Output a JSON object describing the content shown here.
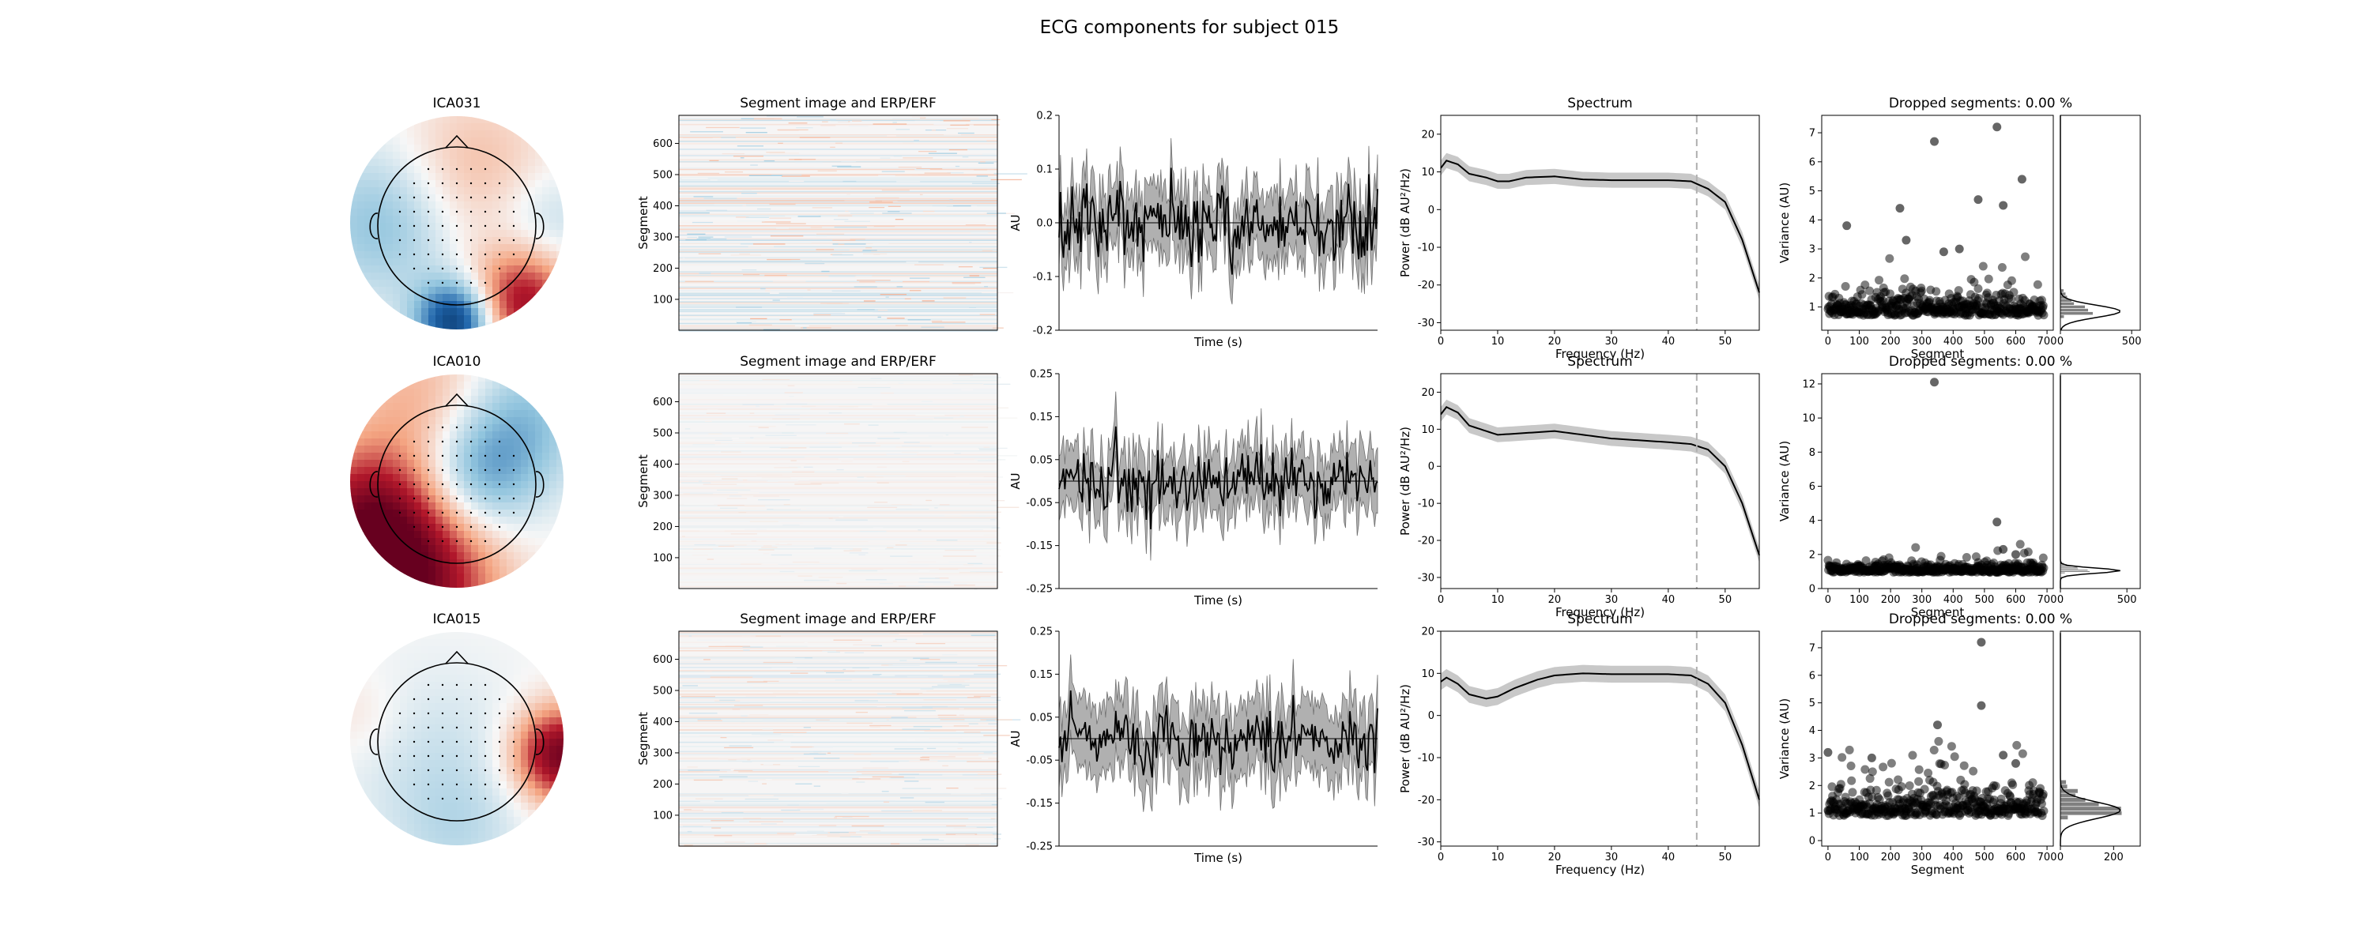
{
  "figure": {
    "title": "ECG components for subject 015"
  },
  "labels": {
    "segment_image_title": "Segment image and ERP/ERF",
    "segment_axis": "Segment",
    "erp_ylabel": "AU",
    "erp_xlabel": "Time (s)",
    "spectrum_title": "Spectrum",
    "spectrum_ylabel": "Power (dB AU²/Hz)",
    "spectrum_xlabel": "Frequency (Hz)",
    "var_ylabel": "Variance (AU)",
    "var_xlabel": "Segment"
  },
  "colors": {
    "red": "#b2182b",
    "blue": "#2166ac",
    "trace": "#000000",
    "band": "#b0b0b0",
    "dashed": "#b0b0b0",
    "scatter": "#000000"
  },
  "chart_data": [
    {
      "type": "heatmap",
      "title": "ICA031",
      "topomap": {
        "blobs": [
          {
            "cx": 0.0,
            "cy": -0.92,
            "r": 0.26,
            "sign": -1,
            "amp": 1.0
          },
          {
            "cx": 0.6,
            "cy": -0.75,
            "r": 0.35,
            "sign": 1,
            "amp": 0.8
          },
          {
            "cx": 0.15,
            "cy": 0.5,
            "r": 0.5,
            "sign": 1,
            "amp": 0.25
          },
          {
            "cx": -0.7,
            "cy": 0.0,
            "r": 0.5,
            "sign": -1,
            "amp": 0.35
          },
          {
            "cx": 0.85,
            "cy": 0.0,
            "r": 0.35,
            "sign": -1,
            "amp": 0.2
          }
        ]
      },
      "segment_image": {
        "yticks": [
          100,
          200,
          300,
          400,
          500,
          600
        ],
        "ylim": [
          1,
          690
        ],
        "noise": 0.18
      },
      "erp": {
        "yticks": [
          -0.2,
          -0.1,
          0.0,
          0.1,
          0.2
        ],
        "ylim": [
          -0.2,
          0.2
        ],
        "mean_amp": 0.05,
        "band": 0.06,
        "baseline": 0.0
      },
      "spectrum": {
        "xlim": [
          0,
          56
        ],
        "ylim": [
          -32,
          25
        ],
        "xticks": [
          0,
          10,
          20,
          30,
          40,
          50
        ],
        "yticks": [
          -30,
          -20,
          -10,
          0,
          10,
          20
        ],
        "dashed_x": 45,
        "curve": [
          [
            0,
            11
          ],
          [
            1,
            13
          ],
          [
            3,
            12
          ],
          [
            5,
            9.5
          ],
          [
            8,
            8.5
          ],
          [
            10,
            7.5
          ],
          [
            12,
            7.5
          ],
          [
            15,
            8.5
          ],
          [
            20,
            8.8
          ],
          [
            25,
            8
          ],
          [
            30,
            7.8
          ],
          [
            40,
            7.8
          ],
          [
            44,
            7.5
          ],
          [
            47,
            5.5
          ],
          [
            50,
            2
          ],
          [
            53,
            -8
          ],
          [
            56,
            -22
          ]
        ],
        "band": 2
      },
      "dropped": {
        "title": "Dropped segments: 0.00 %",
        "xlim": [
          -20,
          720
        ],
        "ylim": [
          0.2,
          7.6
        ],
        "xticks": [
          0,
          100,
          200,
          300,
          400,
          500,
          600,
          700
        ],
        "yticks": [
          1,
          2,
          3,
          4,
          5,
          6,
          7
        ],
        "base": 0.85,
        "spread": 0.35,
        "outliers": [
          [
            60,
            3.8
          ],
          [
            230,
            4.4
          ],
          [
            340,
            6.7
          ],
          [
            540,
            7.2
          ],
          [
            480,
            4.7
          ],
          [
            620,
            5.4
          ],
          [
            560,
            4.5
          ],
          [
            370,
            2.9
          ],
          [
            420,
            3.0
          ],
          [
            250,
            3.3
          ]
        ],
        "hist_xticks": [
          0,
          500
        ],
        "hist_xlim": [
          0,
          560
        ]
      }
    },
    {
      "type": "heatmap",
      "title": "ICA010",
      "topomap": {
        "blobs": [
          {
            "cx": -0.45,
            "cy": -0.95,
            "r": 0.55,
            "sign": 1,
            "amp": 1.0
          },
          {
            "cx": -0.85,
            "cy": -0.3,
            "r": 0.45,
            "sign": 1,
            "amp": 0.7
          },
          {
            "cx": 0.2,
            "cy": 0.05,
            "r": 0.4,
            "sign": -1,
            "amp": 0.45
          },
          {
            "cx": 0.6,
            "cy": 0.6,
            "r": 0.45,
            "sign": -1,
            "amp": 0.35
          },
          {
            "cx": -0.3,
            "cy": 0.75,
            "r": 0.5,
            "sign": 1,
            "amp": 0.3
          }
        ]
      },
      "segment_image": {
        "yticks": [
          100,
          200,
          300,
          400,
          500,
          600
        ],
        "ylim": [
          1,
          690
        ],
        "noise": 0.06
      },
      "erp": {
        "yticks": [
          -0.25,
          -0.15,
          -0.05,
          0.05,
          0.15,
          0.25
        ],
        "ylim": [
          -0.25,
          0.25
        ],
        "mean_amp": 0.05,
        "band": 0.07,
        "baseline": 0.0
      },
      "spectrum": {
        "xlim": [
          0,
          56
        ],
        "ylim": [
          -33,
          25
        ],
        "xticks": [
          0,
          10,
          20,
          30,
          40,
          50
        ],
        "yticks": [
          -30,
          -20,
          -10,
          0,
          10,
          20
        ],
        "dashed_x": 45,
        "curve": [
          [
            0,
            14
          ],
          [
            1,
            16
          ],
          [
            3,
            14.5
          ],
          [
            5,
            11
          ],
          [
            8,
            9.5
          ],
          [
            10,
            8.5
          ],
          [
            15,
            9
          ],
          [
            20,
            9.5
          ],
          [
            25,
            8.5
          ],
          [
            30,
            7.5
          ],
          [
            40,
            6.5
          ],
          [
            44,
            6
          ],
          [
            47,
            4.5
          ],
          [
            50,
            0
          ],
          [
            53,
            -10
          ],
          [
            56,
            -24
          ]
        ],
        "band": 2
      },
      "dropped": {
        "title": "Dropped segments: 0.00 %",
        "xlim": [
          -20,
          720
        ],
        "ylim": [
          0,
          12.6
        ],
        "xticks": [
          0,
          100,
          200,
          300,
          400,
          500,
          600,
          700
        ],
        "yticks": [
          0,
          2,
          4,
          6,
          8,
          10,
          12
        ],
        "base": 1.05,
        "spread": 0.25,
        "outliers": [
          [
            340,
            12.1
          ],
          [
            540,
            3.9
          ],
          [
            560,
            2.3
          ],
          [
            600,
            2.0
          ]
        ],
        "hist_xticks": [
          0,
          500
        ],
        "hist_xlim": [
          0,
          600
        ]
      }
    },
    {
      "type": "heatmap",
      "title": "ICA015",
      "topomap": {
        "blobs": [
          {
            "cx": 0.98,
            "cy": -0.15,
            "r": 0.3,
            "sign": 1,
            "amp": 1.0
          },
          {
            "cx": -0.2,
            "cy": -0.2,
            "r": 0.6,
            "sign": -1,
            "amp": 0.15
          },
          {
            "cx": 0.0,
            "cy": -0.9,
            "r": 0.4,
            "sign": -1,
            "amp": 0.15
          },
          {
            "cx": -0.9,
            "cy": 0.2,
            "r": 0.3,
            "sign": 1,
            "amp": 0.1
          }
        ]
      },
      "segment_image": {
        "yticks": [
          100,
          200,
          300,
          400,
          500,
          600
        ],
        "ylim": [
          1,
          690
        ],
        "noise": 0.12
      },
      "erp": {
        "yticks": [
          -0.25,
          -0.15,
          -0.05,
          0.05,
          0.15,
          0.25
        ],
        "ylim": [
          -0.25,
          0.25
        ],
        "mean_amp": 0.05,
        "band": 0.08,
        "baseline": 0.0
      },
      "spectrum": {
        "xlim": [
          0,
          56
        ],
        "ylim": [
          -31,
          20
        ],
        "xticks": [
          0,
          10,
          20,
          30,
          40,
          50
        ],
        "yticks": [
          -30,
          -20,
          -10,
          0,
          10,
          20
        ],
        "dashed_x": 45,
        "curve": [
          [
            0,
            8
          ],
          [
            1,
            9
          ],
          [
            3,
            7.5
          ],
          [
            5,
            5
          ],
          [
            8,
            4
          ],
          [
            10,
            4.5
          ],
          [
            13,
            6.5
          ],
          [
            17,
            8.5
          ],
          [
            20,
            9.5
          ],
          [
            25,
            10
          ],
          [
            30,
            9.8
          ],
          [
            40,
            9.8
          ],
          [
            44,
            9.5
          ],
          [
            47,
            7.5
          ],
          [
            50,
            3
          ],
          [
            53,
            -7
          ],
          [
            56,
            -20
          ]
        ],
        "band": 2
      },
      "dropped": {
        "title": "Dropped segments: 0.00 %",
        "xlim": [
          -20,
          720
        ],
        "ylim": [
          -0.2,
          7.6
        ],
        "xticks": [
          0,
          100,
          200,
          300,
          400,
          500,
          600,
          700
        ],
        "yticks": [
          0,
          1,
          2,
          3,
          4,
          5,
          6,
          7
        ],
        "base": 1.1,
        "spread": 0.5,
        "outliers": [
          [
            0,
            3.2
          ],
          [
            350,
            4.2
          ],
          [
            490,
            7.2
          ],
          [
            490,
            4.9
          ],
          [
            560,
            3.1
          ],
          [
            600,
            2.8
          ],
          [
            140,
            3.0
          ]
        ],
        "hist_xticks": [
          0,
          200
        ],
        "hist_xlim": [
          0,
          300
        ]
      }
    }
  ]
}
